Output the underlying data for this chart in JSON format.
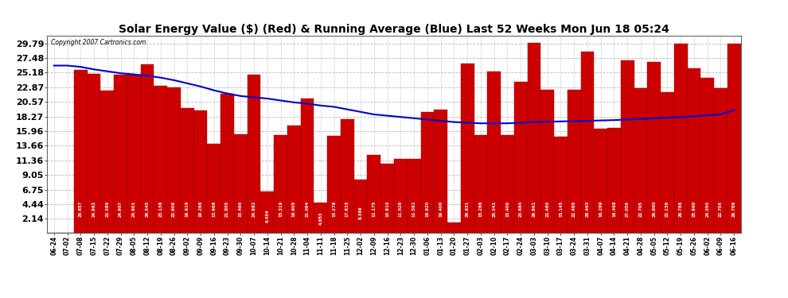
{
  "title": "Solar Energy Value ($) (Red) & Running Average (Blue) Last 52 Weeks Mon Jun 18 05:24",
  "copyright": "Copyright 2007 Cartronics.com",
  "bar_color": "#cc0000",
  "line_color": "#0000cc",
  "bg_color": "#ffffff",
  "grid_color": "#bbbbbb",
  "yticks": [
    2.14,
    4.44,
    6.75,
    9.05,
    11.36,
    13.66,
    15.96,
    18.27,
    20.57,
    22.87,
    25.18,
    27.48,
    29.79
  ],
  "dates": [
    "06-24",
    "07-02",
    "07-08",
    "07-15",
    "07-22",
    "07-29",
    "08-05",
    "08-12",
    "08-19",
    "08-26",
    "09-02",
    "09-09",
    "09-16",
    "09-23",
    "09-30",
    "10-07",
    "10-14",
    "10-21",
    "10-28",
    "11-04",
    "11-11",
    "11-18",
    "11-25",
    "12-02",
    "12-09",
    "12-16",
    "12-23",
    "12-30",
    "01-06",
    "01-13",
    "01-20",
    "01-27",
    "02-03",
    "02-10",
    "02-17",
    "02-24",
    "03-03",
    "03-10",
    "03-17",
    "03-24",
    "03-31",
    "04-07",
    "04-14",
    "04-21",
    "04-28",
    "05-05",
    "05-12",
    "05-19",
    "05-26",
    "06-02",
    "06-09",
    "06-16"
  ],
  "values": [
    0.0,
    0.0,
    25.657,
    24.962,
    22.389,
    24.907,
    24.901,
    26.545,
    23.138,
    22.908,
    19.619,
    19.266,
    13.966,
    21.805,
    15.49,
    24.882,
    6.454,
    15.319,
    16.905,
    21.094,
    4.653,
    15.278,
    17.815,
    8.389,
    12.175,
    10.81,
    11.529,
    11.561,
    18.92,
    19.4,
    1.54,
    26.631,
    15.286,
    25.341,
    15.4,
    23.684,
    29.861,
    22.48,
    15.145,
    22.48,
    28.463,
    16.289,
    16.468,
    27.059,
    22.705,
    26.86,
    22.136,
    29.786,
    25.86,
    24.35,
    22.705,
    29.786
  ],
  "running_avg": [
    26.3,
    26.3,
    26.1,
    25.7,
    25.4,
    25.1,
    24.9,
    24.7,
    24.4,
    24.0,
    23.5,
    23.0,
    22.4,
    21.9,
    21.5,
    21.3,
    21.1,
    20.8,
    20.5,
    20.3,
    20.0,
    19.8,
    19.4,
    19.0,
    18.6,
    18.4,
    18.2,
    18.0,
    17.8,
    17.6,
    17.4,
    17.3,
    17.2,
    17.2,
    17.2,
    17.3,
    17.4,
    17.45,
    17.5,
    17.55,
    17.6,
    17.65,
    17.7,
    17.8,
    17.9,
    18.0,
    18.1,
    18.2,
    18.3,
    18.45,
    18.6,
    19.3
  ],
  "ylim": [
    0,
    31.0
  ],
  "title_fontsize": 10,
  "label_fontsize": 5.5,
  "ytick_fontsize": 8
}
